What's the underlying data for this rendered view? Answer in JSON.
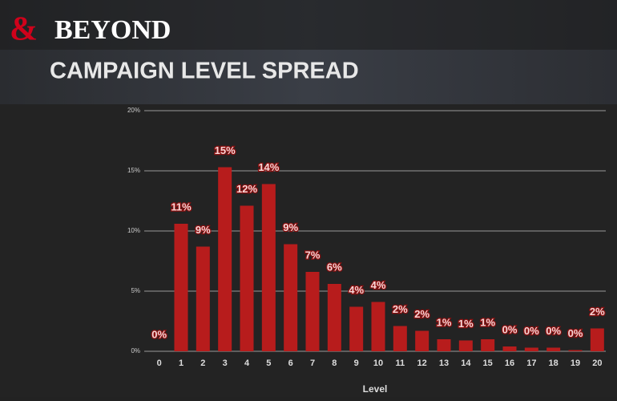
{
  "logo": {
    "symbol": "&",
    "text": "BEYOND"
  },
  "chart_data": {
    "type": "bar",
    "title": "CAMPAIGN LEVEL SPREAD",
    "x_label": "Level",
    "categories": [
      "0",
      "1",
      "2",
      "3",
      "4",
      "5",
      "6",
      "7",
      "8",
      "9",
      "10",
      "11",
      "12",
      "13",
      "14",
      "15",
      "16",
      "17",
      "18",
      "19",
      "20"
    ],
    "values": [
      0,
      10.6,
      8.7,
      15.3,
      12.1,
      13.9,
      8.9,
      6.6,
      5.6,
      3.7,
      4.1,
      2.1,
      1.7,
      1.0,
      0.9,
      1.0,
      0.4,
      0.3,
      0.3,
      0.1,
      1.9
    ],
    "value_labels": [
      "0%",
      "11%",
      "9%",
      "15%",
      "12%",
      "14%",
      "9%",
      "7%",
      "6%",
      "4%",
      "4%",
      "2%",
      "2%",
      "1%",
      "1%",
      "1%",
      "0%",
      "0%",
      "0%",
      "0%",
      "2%"
    ],
    "color": "#b71c1c",
    "ylim": [
      0,
      20
    ],
    "yticks": [
      {
        "value": 0,
        "label": "0%"
      },
      {
        "value": 5,
        "label": "5%"
      },
      {
        "value": 10,
        "label": "10%"
      },
      {
        "value": 15,
        "label": "15%"
      },
      {
        "value": 20,
        "label": "20%"
      }
    ],
    "grid": true
  }
}
